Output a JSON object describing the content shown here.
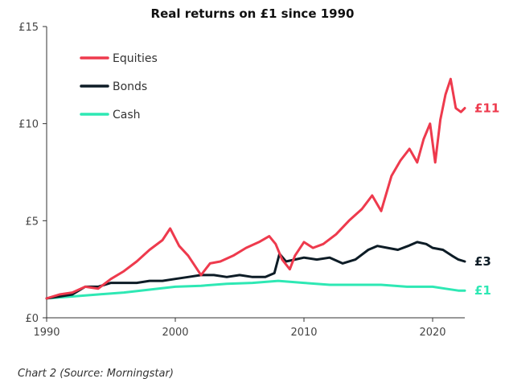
{
  "caption": "Chart 2 (Source: Morningstar)",
  "chart_data": {
    "type": "line",
    "title": "Real returns on £1 since 1990",
    "xlabel": "",
    "ylabel": "",
    "xlim": [
      1990,
      2022.5
    ],
    "ylim": [
      0,
      15
    ],
    "x_ticks": [
      1990,
      2000,
      2010,
      2020
    ],
    "x_tick_labels": [
      "1990",
      "2000",
      "2010",
      "2020"
    ],
    "y_ticks": [
      0,
      5,
      10,
      15
    ],
    "y_tick_labels": [
      "£0",
      "£5",
      "£10",
      "£15"
    ],
    "grid": false,
    "legend_position": "top-left",
    "series": [
      {
        "name": "Equities",
        "color": "#ee3a4d",
        "end_label": "£11",
        "x": [
          1990,
          1991,
          1992,
          1993,
          1994,
          1995,
          1996,
          1997,
          1998,
          1999,
          1999.6,
          2000.3,
          2001,
          2002,
          2002.7,
          2003.5,
          2004.5,
          2005.5,
          2006.5,
          2007.3,
          2007.8,
          2008.3,
          2008.9,
          2009.3,
          2010,
          2010.7,
          2011.5,
          2012.5,
          2013.5,
          2014.5,
          2015.3,
          2016,
          2016.8,
          2017.5,
          2018.2,
          2018.8,
          2019.3,
          2019.8,
          2020.2,
          2020.6,
          2021,
          2021.4,
          2021.8,
          2022.2,
          2022.5
        ],
        "y": [
          1.0,
          1.2,
          1.3,
          1.6,
          1.5,
          2.0,
          2.4,
          2.9,
          3.5,
          4.0,
          4.6,
          3.7,
          3.2,
          2.2,
          2.8,
          2.9,
          3.2,
          3.6,
          3.9,
          4.2,
          3.8,
          3.0,
          2.5,
          3.2,
          3.9,
          3.6,
          3.8,
          4.3,
          5.0,
          5.6,
          6.3,
          5.5,
          7.3,
          8.1,
          8.7,
          8.0,
          9.2,
          10.0,
          8.0,
          10.2,
          11.5,
          12.3,
          10.8,
          10.6,
          10.8
        ]
      },
      {
        "name": "Bonds",
        "color": "#0d1c26",
        "end_label": "£3",
        "x": [
          1990,
          1991,
          1992,
          1993,
          1994,
          1995,
          1996,
          1997,
          1998,
          1999,
          2000,
          2001,
          2002,
          2003,
          2004,
          2005,
          2006,
          2007,
          2007.7,
          2008.1,
          2008.6,
          2009.3,
          2010,
          2011,
          2012,
          2013,
          2014,
          2015,
          2015.7,
          2016.5,
          2017.3,
          2018.1,
          2018.8,
          2019.5,
          2020,
          2020.8,
          2021.5,
          2022,
          2022.5
        ],
        "y": [
          1.0,
          1.1,
          1.2,
          1.6,
          1.6,
          1.8,
          1.8,
          1.8,
          1.9,
          1.9,
          2.0,
          2.1,
          2.2,
          2.2,
          2.1,
          2.2,
          2.1,
          2.1,
          2.3,
          3.3,
          2.9,
          3.0,
          3.1,
          3.0,
          3.1,
          2.8,
          3.0,
          3.5,
          3.7,
          3.6,
          3.5,
          3.7,
          3.9,
          3.8,
          3.6,
          3.5,
          3.2,
          3.0,
          2.9
        ]
      },
      {
        "name": "Cash",
        "color": "#2ee8b4",
        "end_label": "£1",
        "x": [
          1990,
          1992,
          1994,
          1996,
          1998,
          2000,
          2002,
          2004,
          2006,
          2008,
          2010,
          2012,
          2014,
          2016,
          2018,
          2020,
          2021,
          2022,
          2022.5
        ],
        "y": [
          1.0,
          1.1,
          1.2,
          1.3,
          1.45,
          1.6,
          1.65,
          1.75,
          1.8,
          1.9,
          1.8,
          1.7,
          1.7,
          1.7,
          1.6,
          1.6,
          1.5,
          1.4,
          1.4
        ]
      }
    ]
  }
}
